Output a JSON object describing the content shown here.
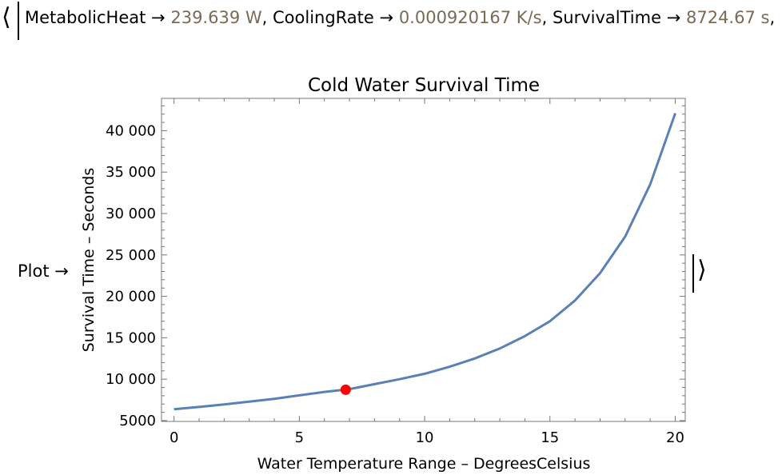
{
  "association": {
    "open_bracket": "⟨",
    "close_bracket": "⟩",
    "arrow": "→",
    "separator": ",",
    "entries": [
      {
        "key": "MetabolicHeat",
        "value": "239.639 W"
      },
      {
        "key": "CoolingRate",
        "value": "0.000920167 K/s"
      },
      {
        "key": "SurvivalTime",
        "value": "8724.67 s"
      }
    ],
    "plot_key": "Plot"
  },
  "colors": {
    "curve": "#5b7fb7",
    "marker": "#ff0000",
    "value_text": "#7a6a55",
    "frame": "#777777"
  },
  "chart_data": {
    "type": "line",
    "title": "Cold Water Survival Time",
    "xlabel": "Water Temperature Range – DegreesCelsius",
    "ylabel": "Survival Time – Seconds",
    "xlim": [
      -0.5,
      20.4
    ],
    "ylim": [
      4900,
      43900
    ],
    "xticks": [
      0,
      5,
      10,
      15,
      20
    ],
    "xtick_labels": [
      "0",
      "5",
      "10",
      "15",
      "20"
    ],
    "yticks": [
      5000,
      10000,
      15000,
      20000,
      25000,
      30000,
      35000,
      40000
    ],
    "ytick_labels": [
      "5000",
      "10 000",
      "15 000",
      "20 000",
      "25 000",
      "30 000",
      "35 000",
      "40 000"
    ],
    "series": [
      {
        "x": [
          0,
          1,
          2,
          3,
          4,
          5,
          6,
          7,
          8,
          9,
          10,
          11,
          12,
          13,
          14,
          15,
          16,
          17,
          18,
          19,
          20
        ],
        "y": [
          6380,
          6650,
          6950,
          7280,
          7630,
          8050,
          8460,
          8800,
          9400,
          10000,
          10650,
          11500,
          12500,
          13700,
          15200,
          17000,
          19500,
          22800,
          27200,
          33500,
          42100
        ]
      }
    ],
    "highlight_point": {
      "x": 6.85,
      "y": 8724.67
    },
    "grid": false
  }
}
